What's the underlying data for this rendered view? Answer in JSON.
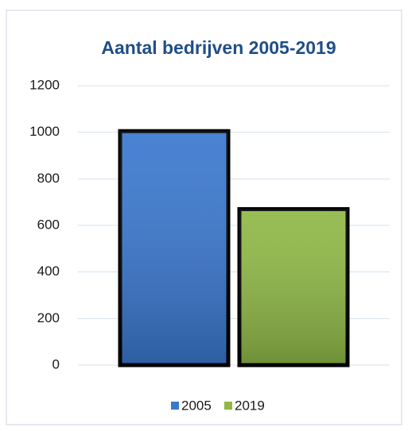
{
  "chart_data": {
    "type": "bar",
    "title": "Aantal bedrijven 2005-2019",
    "categories": [
      null
    ],
    "series": [
      {
        "name": "2005",
        "color": "#3a78cf",
        "values": [
          1005
        ]
      },
      {
        "name": "2019",
        "color": "#8fb846",
        "values": [
          670
        ]
      }
    ],
    "ylim": [
      0,
      1200
    ],
    "yticks": [
      0,
      200,
      400,
      600,
      800,
      1000,
      1200
    ],
    "grid": true,
    "legend": "bottom"
  }
}
